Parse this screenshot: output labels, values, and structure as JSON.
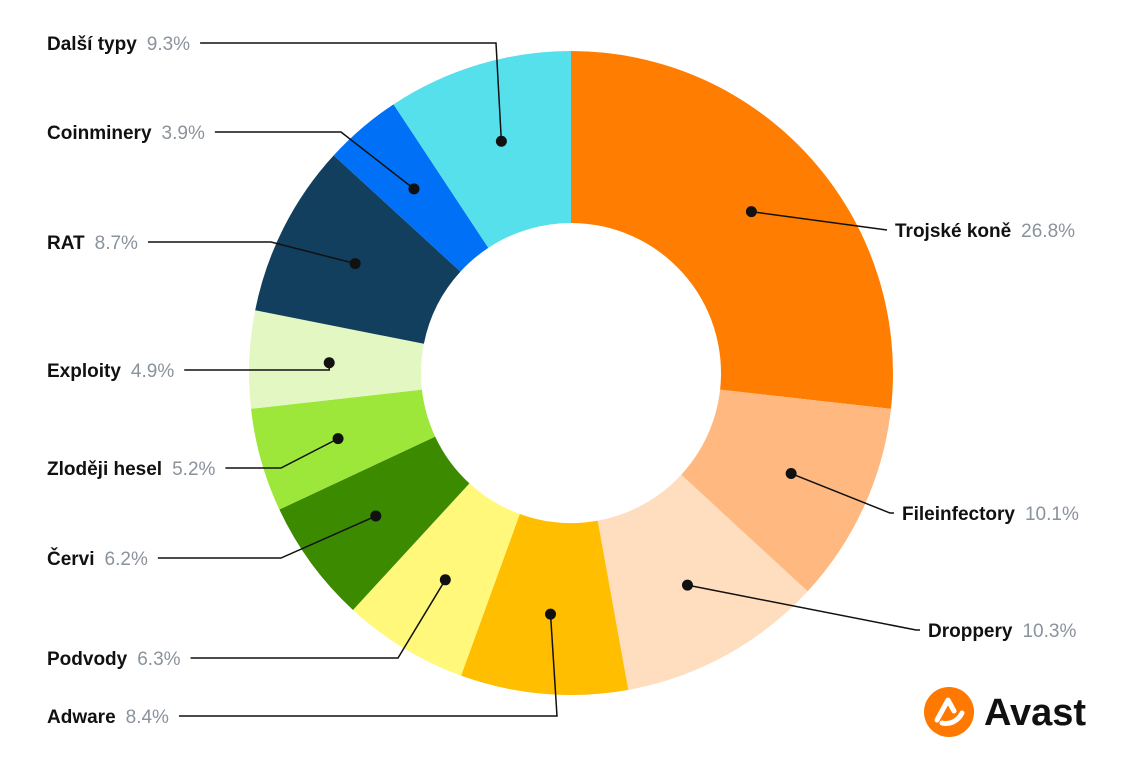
{
  "chart_data": {
    "type": "pie",
    "donut": true,
    "unit": "%",
    "slices": [
      {
        "label": "Trojské koně",
        "value": 26.8,
        "value_text": "26.8%",
        "color": "#FF7D00"
      },
      {
        "label": "Fileinfectory",
        "value": 10.1,
        "value_text": "10.1%",
        "color": "#FFB880"
      },
      {
        "label": "Droppery",
        "value": 10.3,
        "value_text": "10.3%",
        "color": "#FFDDBF"
      },
      {
        "label": "Adware",
        "value": 8.4,
        "value_text": "8.4%",
        "color": "#FFBE00"
      },
      {
        "label": "Podvody",
        "value": 6.3,
        "value_text": "6.3%",
        "color": "#FFF87A"
      },
      {
        "label": "Červi",
        "value": 6.2,
        "value_text": "6.2%",
        "color": "#3B8A00"
      },
      {
        "label": "Zloději hesel",
        "value": 5.2,
        "value_text": "5.2%",
        "color": "#9DE63A"
      },
      {
        "label": "Exploity",
        "value": 4.9,
        "value_text": "4.9%",
        "color": "#E3F7C2"
      },
      {
        "label": "RAT",
        "value": 8.7,
        "value_text": "8.7%",
        "color": "#123F5E"
      },
      {
        "label": "Coinminery",
        "value": 3.9,
        "value_text": "3.9%",
        "color": "#0070F6"
      },
      {
        "label": "Další typy",
        "value": 9.3,
        "value_text": "9.3%",
        "color": "#56E0EC"
      }
    ]
  },
  "logo": {
    "text": "Avast",
    "color": "#FF7800"
  }
}
